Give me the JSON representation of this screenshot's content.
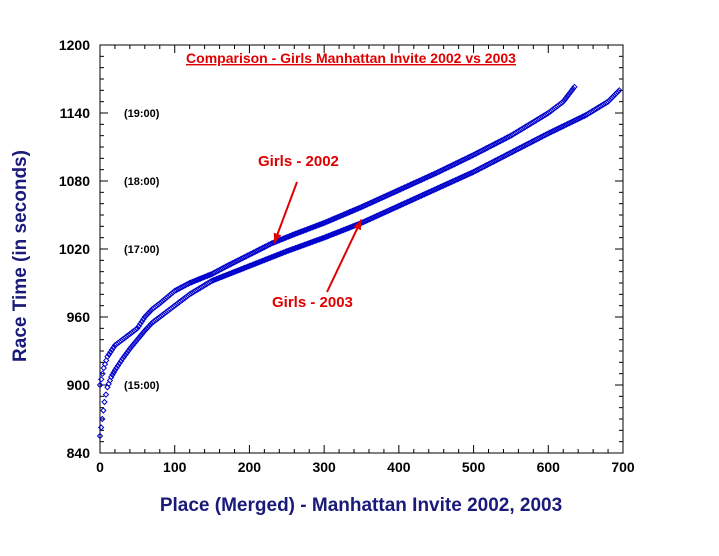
{
  "chart_data": {
    "type": "scatter",
    "title": "Comparison - Girls Manhattan Invite 2002 vs 2003",
    "xlabel": "Place (Merged) - Manhattan Invite 2002, 2003",
    "ylabel": "Race Time (in seconds)",
    "xlim": [
      0,
      700
    ],
    "ylim": [
      840,
      1200
    ],
    "xticks": [
      "0",
      "100",
      "200",
      "300",
      "400",
      "500",
      "600",
      "700"
    ],
    "yticks": [
      "840",
      "900",
      "960",
      "1020",
      "1080",
      "1140",
      "1200"
    ],
    "grid": false,
    "legend": "none",
    "notes": [
      {
        "text": "(19:00)",
        "y": 1140
      },
      {
        "text": "(18:00)",
        "y": 1080
      },
      {
        "text": "(17:00)",
        "y": 1020
      },
      {
        "text": "(15:00)",
        "y": 900
      }
    ],
    "annotations": [
      {
        "text": "Girls - 2002",
        "target": [
          233,
          1025
        ]
      },
      {
        "text": "Girls - 2003",
        "target": [
          350,
          1046
        ]
      }
    ],
    "series": [
      {
        "marker_color": "#0000cc",
        "x": [
          0,
          5,
          10,
          20,
          30,
          40,
          50,
          60,
          70,
          80,
          100,
          120,
          150,
          170,
          200,
          230,
          260,
          300,
          350,
          400,
          450,
          500,
          550,
          600,
          620,
          635
        ],
        "y": [
          900,
          915,
          925,
          935,
          940,
          945,
          950,
          960,
          967,
          972,
          983,
          990,
          998,
          1005,
          1015,
          1025,
          1033,
          1043,
          1057,
          1072,
          1087,
          1103,
          1120,
          1140,
          1150,
          1163
        ]
      },
      {
        "marker_color": "#0000cc",
        "x": [
          0,
          3,
          6,
          10,
          15,
          20,
          30,
          40,
          50,
          60,
          70,
          80,
          100,
          120,
          150,
          200,
          250,
          300,
          350,
          400,
          450,
          500,
          550,
          600,
          650,
          680,
          695
        ],
        "y": [
          855,
          870,
          885,
          898,
          907,
          913,
          923,
          932,
          940,
          948,
          955,
          960,
          970,
          980,
          992,
          1005,
          1018,
          1030,
          1043,
          1058,
          1073,
          1088,
          1105,
          1122,
          1138,
          1150,
          1160
        ]
      }
    ]
  }
}
